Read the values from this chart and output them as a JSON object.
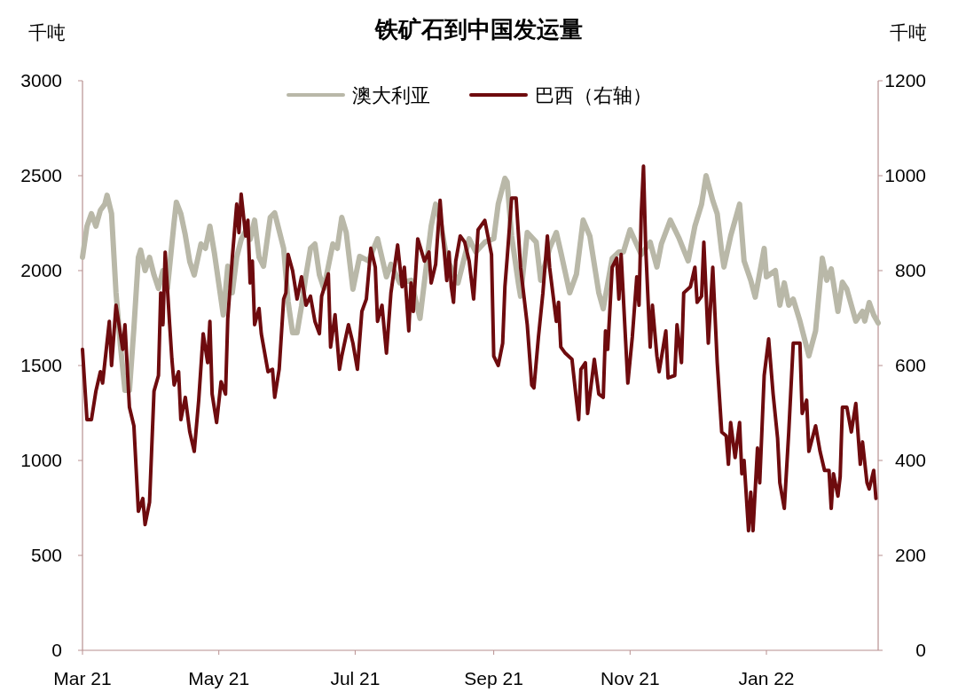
{
  "chart_data": {
    "type": "line",
    "title": "铁矿石到中国发运量",
    "ylabel": "千吨",
    "y2label": "千吨",
    "xlim": [
      "2021-03-01",
      "2022-02-20"
    ],
    "xticks": [
      {
        "value": "2021-03-01",
        "label": "Mar 21"
      },
      {
        "value": "2021-05-01",
        "label": "May 21"
      },
      {
        "value": "2021-07-01",
        "label": "Jul 21"
      },
      {
        "value": "2021-09-01",
        "label": "Sep 21"
      },
      {
        "value": "2021-11-01",
        "label": "Nov 21"
      },
      {
        "value": "2022-01-01",
        "label": "Jan 22"
      }
    ],
    "ylim": [
      0,
      3000
    ],
    "yticks": [
      0,
      500,
      1000,
      1500,
      2000,
      2500,
      3000
    ],
    "y2lim": [
      0,
      1200
    ],
    "y2ticks": [
      0,
      200,
      400,
      600,
      800,
      1000,
      1200
    ],
    "legend": "top",
    "grid": false,
    "line_style": "solid",
    "series": [
      {
        "name": "澳大利亚",
        "color": "#b9b8a8",
        "x": [
          "2021-03-01",
          "2021-03-03",
          "2021-03-05",
          "2021-03-07",
          "2021-03-09",
          "2021-03-11",
          "2021-03-12",
          "2021-03-14",
          "2021-03-16",
          "2021-03-18",
          "2021-03-20",
          "2021-03-22",
          "2021-03-24",
          "2021-03-26",
          "2021-03-27",
          "2021-03-29",
          "2021-03-31",
          "2021-04-02",
          "2021-04-04",
          "2021-04-06",
          "2021-04-08",
          "2021-04-10",
          "2021-04-11",
          "2021-04-12",
          "2021-04-14",
          "2021-04-16",
          "2021-04-18",
          "2021-04-20",
          "2021-04-23",
          "2021-04-25",
          "2021-04-27",
          "2021-04-29",
          "2021-05-01",
          "2021-05-03",
          "2021-05-05",
          "2021-05-07",
          "2021-05-09",
          "2021-05-11",
          "2021-05-13",
          "2021-05-15",
          "2021-05-17",
          "2021-05-19",
          "2021-05-21",
          "2021-05-24",
          "2021-05-26",
          "2021-05-28",
          "2021-05-30",
          "2021-06-01",
          "2021-06-03",
          "2021-06-05",
          "2021-06-07",
          "2021-06-09",
          "2021-06-11",
          "2021-06-13",
          "2021-06-15",
          "2021-06-17",
          "2021-06-19",
          "2021-06-21",
          "2021-06-23",
          "2021-06-25",
          "2021-06-27",
          "2021-06-30",
          "2021-07-03",
          "2021-07-07",
          "2021-07-11",
          "2021-07-15",
          "2021-07-17",
          "2021-07-21",
          "2021-07-26",
          "2021-07-30",
          "2021-08-04",
          "2021-08-06",
          "2021-08-08",
          "2021-08-11",
          "2021-08-16",
          "2021-08-21",
          "2021-08-24",
          "2021-08-28",
          "2021-09-01",
          "2021-09-03",
          "2021-09-06",
          "2021-09-07",
          "2021-09-09",
          "2021-09-12",
          "2021-09-13",
          "2021-09-16",
          "2021-09-20",
          "2021-09-22",
          "2021-09-26",
          "2021-09-29",
          "2021-10-01",
          "2021-10-05",
          "2021-10-08",
          "2021-10-11",
          "2021-10-14",
          "2021-10-18",
          "2021-10-20",
          "2021-10-24",
          "2021-10-27",
          "2021-10-29",
          "2021-11-01",
          "2021-11-06",
          "2021-11-10",
          "2021-11-13",
          "2021-11-15",
          "2021-11-19",
          "2021-11-23",
          "2021-11-27",
          "2021-11-30",
          "2021-12-03",
          "2021-12-05",
          "2021-12-08",
          "2021-12-10",
          "2021-12-12",
          "2021-12-13",
          "2021-12-16",
          "2021-12-18",
          "2021-12-20",
          "2021-12-22",
          "2021-12-25",
          "2021-12-27",
          "2021-12-31",
          "2022-01-01",
          "2022-01-05",
          "2022-01-07",
          "2022-01-09",
          "2022-01-11",
          "2022-01-13",
          "2022-01-16",
          "2022-01-20",
          "2022-01-23",
          "2022-01-26",
          "2022-01-28",
          "2022-01-30",
          "2022-02-02",
          "2022-02-04",
          "2022-02-06",
          "2022-02-10",
          "2022-02-13",
          "2022-02-14",
          "2022-02-16",
          "2022-02-18",
          "2022-02-20"
        ],
        "values": [
          2070,
          2234,
          2300,
          2234,
          2318,
          2350,
          2397,
          2300,
          1883,
          1603,
          1369,
          1369,
          1696,
          2070,
          2108,
          2000,
          2070,
          1977,
          1906,
          2000,
          1906,
          2140,
          2257,
          2360,
          2300,
          2187,
          2047,
          1977,
          2140,
          2117,
          2234,
          2094,
          1930,
          1766,
          2023,
          1883,
          2070,
          2164,
          2210,
          2164,
          2266,
          2070,
          2023,
          2280,
          2304,
          2210,
          2117,
          1836,
          1673,
          1673,
          1813,
          1977,
          2117,
          2140,
          1977,
          1906,
          2023,
          2140,
          2117,
          2280,
          2200,
          1902,
          2075,
          2051,
          2168,
          1967,
          2033,
          1935,
          1949,
          1748,
          2234,
          2350,
          2266,
          2065,
          1935,
          2168,
          2098,
          2150,
          2168,
          2350,
          2486,
          2467,
          2182,
          1935,
          1865,
          2201,
          2150,
          1949,
          2117,
          2201,
          2098,
          1883,
          1981,
          2266,
          2182,
          1883,
          1799,
          2065,
          2098,
          2098,
          2215,
          2084,
          2150,
          2019,
          2140,
          2266,
          2168,
          2051,
          2234,
          2350,
          2500,
          2369,
          2299,
          2098,
          2019,
          2182,
          2266,
          2350,
          2051,
          1949,
          1860,
          2117,
          1967,
          2000,
          1818,
          1935,
          1818,
          1850,
          1734,
          1551,
          1682,
          2065,
          1949,
          2009,
          1785,
          1939,
          1902,
          1734,
          1785,
          1734,
          1832,
          1766,
          1724
        ]
      },
      {
        "name": "巴西（右轴）",
        "color": "#6e0b0e",
        "axis": "y2",
        "x": [
          "2021-03-01",
          "2021-03-03",
          "2021-03-05",
          "2021-03-07",
          "2021-03-09",
          "2021-03-10",
          "2021-03-13",
          "2021-03-14",
          "2021-03-16",
          "2021-03-19",
          "2021-03-20",
          "2021-03-22",
          "2021-03-24",
          "2021-03-26",
          "2021-03-28",
          "2021-03-29",
          "2021-03-31",
          "2021-04-02",
          "2021-04-04",
          "2021-04-05",
          "2021-04-06",
          "2021-04-07",
          "2021-04-09",
          "2021-04-10",
          "2021-04-11",
          "2021-04-13",
          "2021-04-14",
          "2021-04-16",
          "2021-04-18",
          "2021-04-20",
          "2021-04-22",
          "2021-04-24",
          "2021-04-26",
          "2021-04-27",
          "2021-04-28",
          "2021-04-30",
          "2021-05-02",
          "2021-05-04",
          "2021-05-05",
          "2021-05-07",
          "2021-05-09",
          "2021-05-10",
          "2021-05-11",
          "2021-05-13",
          "2021-05-14",
          "2021-05-15",
          "2021-05-16",
          "2021-05-17",
          "2021-05-19",
          "2021-05-20",
          "2021-05-23",
          "2021-05-25",
          "2021-05-26",
          "2021-05-28",
          "2021-05-30",
          "2021-05-31",
          "2021-06-01",
          "2021-06-03",
          "2021-06-05",
          "2021-06-07",
          "2021-06-09",
          "2021-06-11",
          "2021-06-13",
          "2021-06-15",
          "2021-06-16",
          "2021-06-19",
          "2021-06-20",
          "2021-06-22",
          "2021-06-24",
          "2021-06-25",
          "2021-06-28",
          "2021-06-30",
          "2021-07-02",
          "2021-07-04",
          "2021-07-06",
          "2021-07-08",
          "2021-07-10",
          "2021-07-11",
          "2021-07-13",
          "2021-07-15",
          "2021-07-17",
          "2021-07-20",
          "2021-07-22",
          "2021-07-23",
          "2021-07-25",
          "2021-07-26",
          "2021-07-27",
          "2021-07-29",
          "2021-08-01",
          "2021-08-03",
          "2021-08-04",
          "2021-08-06",
          "2021-08-08",
          "2021-08-09",
          "2021-08-11",
          "2021-08-12",
          "2021-08-13",
          "2021-08-14",
          "2021-08-15",
          "2021-08-17",
          "2021-08-19",
          "2021-08-21",
          "2021-08-23",
          "2021-08-25",
          "2021-08-28",
          "2021-08-31",
          "2021-09-01",
          "2021-09-03",
          "2021-09-05",
          "2021-09-06",
          "2021-09-07",
          "2021-09-09",
          "2021-09-11",
          "2021-09-13",
          "2021-09-16",
          "2021-09-18",
          "2021-09-19",
          "2021-09-21",
          "2021-09-23",
          "2021-09-25",
          "2021-09-26",
          "2021-09-29",
          "2021-09-30",
          "2021-10-01",
          "2021-10-03",
          "2021-10-06",
          "2021-10-08",
          "2021-10-09",
          "2021-10-10",
          "2021-10-12",
          "2021-10-13",
          "2021-10-16",
          "2021-10-18",
          "2021-10-20",
          "2021-10-21",
          "2021-10-22",
          "2021-10-24",
          "2021-10-26",
          "2021-10-27",
          "2021-10-28",
          "2021-10-30",
          "2021-10-31",
          "2021-11-02",
          "2021-11-04",
          "2021-11-05",
          "2021-11-06",
          "2021-11-07",
          "2021-11-08",
          "2021-11-10",
          "2021-11-11",
          "2021-11-13",
          "2021-11-14",
          "2021-11-17",
          "2021-11-18",
          "2021-11-21",
          "2021-11-22",
          "2021-11-24",
          "2021-11-25",
          "2021-11-28",
          "2021-11-30",
          "2021-12-01",
          "2021-12-03",
          "2021-12-04",
          "2021-12-06",
          "2021-12-08",
          "2021-12-10",
          "2021-12-12",
          "2021-12-14",
          "2021-12-15",
          "2021-12-16",
          "2021-12-18",
          "2021-12-20",
          "2021-12-21",
          "2021-12-22",
          "2021-12-24",
          "2021-12-25",
          "2021-12-26",
          "2021-12-28",
          "2021-12-29",
          "2021-12-30",
          "2021-12-31",
          "2022-01-02",
          "2022-01-04",
          "2022-01-06",
          "2022-01-07",
          "2022-01-09",
          "2022-01-10",
          "2022-01-11",
          "2022-01-13",
          "2022-01-16",
          "2022-01-17",
          "2022-01-19",
          "2022-01-20",
          "2022-01-23",
          "2022-01-25",
          "2022-01-27",
          "2022-01-29",
          "2022-01-30",
          "2022-01-31",
          "2022-02-02",
          "2022-02-03",
          "2022-02-04",
          "2022-02-06",
          "2022-02-08",
          "2022-02-10",
          "2022-02-12",
          "2022-02-13",
          "2022-02-15",
          "2022-02-16",
          "2022-02-18",
          "2022-02-19"
        ],
        "values": [
          634,
          486,
          486,
          546,
          587,
          563,
          693,
          600,
          727,
          634,
          686,
          512,
          473,
          293,
          320,
          265,
          312,
          546,
          579,
          753,
          686,
          839,
          686,
          613,
          559,
          587,
          486,
          533,
          460,
          419,
          527,
          667,
          606,
          693,
          540,
          480,
          566,
          540,
          699,
          826,
          940,
          880,
          961,
          873,
          906,
          774,
          820,
          686,
          720,
          667,
          587,
          592,
          533,
          592,
          740,
          753,
          834,
          800,
          740,
          787,
          727,
          746,
          693,
          667,
          746,
          793,
          639,
          707,
          592,
          620,
          686,
          647,
          592,
          714,
          740,
          847,
          807,
          693,
          727,
          626,
          753,
          854,
          766,
          807,
          673,
          774,
          714,
          867,
          820,
          839,
          774,
          813,
          948,
          886,
          779,
          839,
          766,
          733,
          820,
          873,
          860,
          820,
          740,
          886,
          906,
          834,
          620,
          600,
          647,
          766,
          826,
          953,
          953,
          807,
          686,
          559,
          553,
          660,
          753,
          873,
          807,
          693,
          733,
          639,
          626,
          613,
          527,
          486,
          592,
          606,
          499,
          613,
          540,
          533,
          673,
          634,
          807,
          826,
          740,
          834,
          652,
          563,
          660,
          787,
          727,
          920,
          1020,
          847,
          639,
          727,
          620,
          587,
          673,
          574,
          579,
          686,
          606,
          753,
          766,
          807,
          733,
          746,
          860,
          647,
          807,
          606,
          460,
          452,
          392,
          480,
          406,
          480,
          372,
          400,
          252,
          333,
          252,
          426,
          353,
          465,
          579,
          656,
          540,
          447,
          353,
          299,
          379,
          460,
          647,
          647,
          499,
          527,
          419,
          473,
          419,
          379,
          379,
          299,
          372,
          325,
          366,
          512,
          512,
          460,
          520,
          392,
          439,
          353,
          340,
          379,
          320
        ]
      }
    ]
  }
}
